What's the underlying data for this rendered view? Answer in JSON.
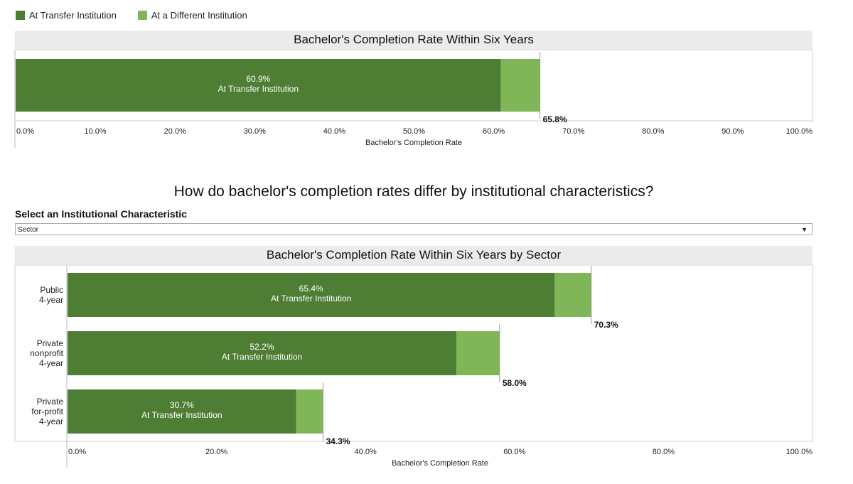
{
  "legend": [
    {
      "label": "At Transfer Institution",
      "color": "#4e7d34"
    },
    {
      "label": "At a Different Institution",
      "color": "#7fb657"
    }
  ],
  "section_heading": "How do bachelor's completion rates differ by institutional characteristics?",
  "select": {
    "label": "Select an Institutional Characteristic",
    "value": "Sector"
  },
  "chart_data": [
    {
      "type": "bar",
      "orientation": "horizontal",
      "stacked": true,
      "title": "Bachelor's Completion Rate Within Six Years",
      "xlabel": "Bachelor's Completion Rate",
      "xlim": [
        0,
        100
      ],
      "xticks": [
        "0.0%",
        "10.0%",
        "20.0%",
        "30.0%",
        "40.0%",
        "50.0%",
        "60.0%",
        "70.0%",
        "80.0%",
        "90.0%",
        "100.0%"
      ],
      "categories": [
        ""
      ],
      "series": [
        {
          "name": "At Transfer Institution",
          "values": [
            60.9
          ]
        },
        {
          "name": "At a Different Institution",
          "values": [
            4.9
          ]
        }
      ],
      "bar_labels": [
        [
          "60.9%",
          "At Transfer Institution"
        ]
      ],
      "totals": [
        "65.8%"
      ],
      "total_values": [
        65.8
      ]
    },
    {
      "type": "bar",
      "orientation": "horizontal",
      "stacked": true,
      "title": "Bachelor's Completion Rate Within Six Years by Sector",
      "xlabel": "Bachelor's Completion Rate",
      "xlim": [
        0,
        100
      ],
      "xticks": [
        "0.0%",
        "20.0%",
        "40.0%",
        "60.0%",
        "80.0%",
        "100.0%"
      ],
      "categories": [
        [
          "Public",
          "4-year"
        ],
        [
          "Private",
          "nonprofit",
          "4-year"
        ],
        [
          "Private",
          "for-profit",
          "4-year"
        ]
      ],
      "series": [
        {
          "name": "At Transfer Institution",
          "values": [
            65.4,
            52.2,
            30.7
          ]
        },
        {
          "name": "At a Different Institution",
          "values": [
            4.9,
            5.8,
            3.6
          ]
        }
      ],
      "bar_labels": [
        [
          "65.4%",
          "At Transfer Institution"
        ],
        [
          "52.2%",
          "At Transfer Institution"
        ],
        [
          "30.7%",
          "At Transfer Institution"
        ]
      ],
      "totals": [
        "70.3%",
        "58.0%",
        "34.3%"
      ],
      "total_values": [
        70.3,
        58.0,
        34.3
      ]
    }
  ]
}
